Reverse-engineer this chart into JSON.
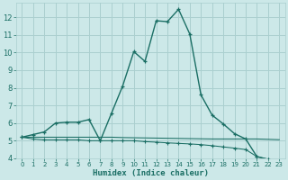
{
  "xlabel": "Humidex (Indice chaleur)",
  "bg_color": "#cce8e8",
  "grid_color": "#aacfcf",
  "line_color": "#1a6e64",
  "xlim": [
    -0.5,
    23.5
  ],
  "ylim": [
    4,
    12.8
  ],
  "xticks": [
    0,
    1,
    2,
    3,
    4,
    5,
    6,
    7,
    8,
    9,
    10,
    11,
    12,
    13,
    14,
    15,
    16,
    17,
    18,
    19,
    20,
    21,
    22,
    23
  ],
  "yticks": [
    4,
    5,
    6,
    7,
    8,
    9,
    10,
    11,
    12
  ],
  "series1_x": [
    0,
    1,
    2,
    3,
    4,
    5,
    6,
    7,
    8,
    9,
    10,
    11,
    12,
    13,
    14,
    15,
    16,
    17,
    18,
    19,
    20,
    21,
    22,
    23
  ],
  "series1_y": [
    5.2,
    5.35,
    5.5,
    6.0,
    6.05,
    6.05,
    6.2,
    5.0,
    6.55,
    8.1,
    10.05,
    9.5,
    11.8,
    11.75,
    12.45,
    11.05,
    7.6,
    6.45,
    5.95,
    5.4,
    5.1,
    4.1,
    3.95,
    3.85
  ],
  "series2_x": [
    0,
    1,
    2,
    3,
    4,
    5,
    6,
    7,
    8,
    9,
    10,
    11,
    12,
    13,
    14,
    15,
    16,
    17,
    18,
    19,
    20,
    21,
    22,
    23
  ],
  "series2_y": [
    5.2,
    5.1,
    5.05,
    5.05,
    5.05,
    5.05,
    5.0,
    5.0,
    5.0,
    5.0,
    5.0,
    4.95,
    4.92,
    4.88,
    4.85,
    4.82,
    4.78,
    4.72,
    4.65,
    4.58,
    4.5,
    4.1,
    3.95,
    3.85
  ],
  "series3_x": [
    0,
    1,
    2,
    3,
    4,
    5,
    6,
    7,
    8,
    9,
    10,
    11,
    12,
    13,
    14,
    15,
    16,
    17,
    18,
    19,
    20,
    21,
    22,
    23
  ],
  "series3_y": [
    5.2,
    5.2,
    5.2,
    5.2,
    5.2,
    5.2,
    5.2,
    5.2,
    5.2,
    5.18,
    5.17,
    5.16,
    5.15,
    5.14,
    5.13,
    5.12,
    5.11,
    5.1,
    5.1,
    5.1,
    5.1,
    5.1,
    5.08,
    5.06
  ]
}
